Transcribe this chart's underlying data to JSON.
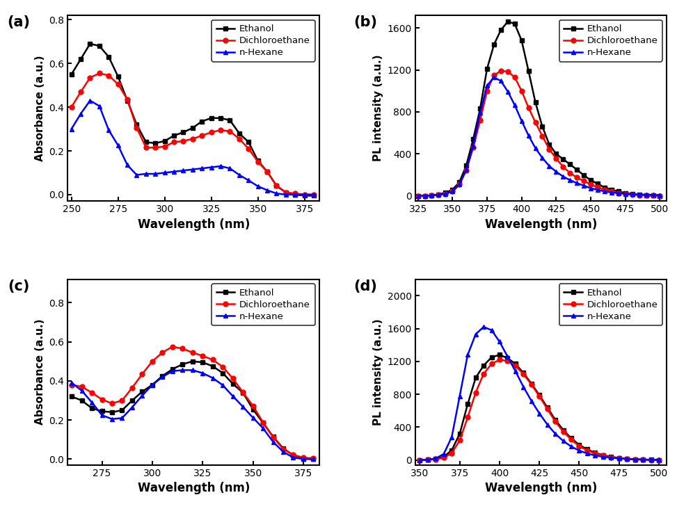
{
  "panel_a": {
    "xlabel": "Wavelength (nm)",
    "ylabel": "Absorbance (a.u.)",
    "xlim": [
      248,
      383
    ],
    "ylim": [
      -0.03,
      0.82
    ],
    "yticks": [
      0.0,
      0.2,
      0.4,
      0.6,
      0.8
    ],
    "xticks": [
      250,
      275,
      300,
      325,
      350,
      375
    ],
    "ethanol_x": [
      250,
      255,
      260,
      265,
      270,
      275,
      280,
      285,
      290,
      295,
      300,
      305,
      310,
      315,
      320,
      325,
      330,
      335,
      340,
      345,
      350,
      355,
      360,
      365,
      370,
      375,
      380
    ],
    "ethanol_y": [
      0.55,
      0.62,
      0.69,
      0.68,
      0.63,
      0.54,
      0.43,
      0.32,
      0.24,
      0.235,
      0.245,
      0.27,
      0.285,
      0.305,
      0.335,
      0.35,
      0.35,
      0.34,
      0.28,
      0.24,
      0.155,
      0.105,
      0.04,
      0.01,
      0.0,
      -0.005,
      -0.005
    ],
    "dcethane_x": [
      250,
      255,
      260,
      265,
      270,
      275,
      280,
      285,
      290,
      295,
      300,
      305,
      310,
      315,
      320,
      325,
      330,
      335,
      340,
      345,
      350,
      355,
      360,
      365,
      370,
      375,
      380
    ],
    "dcethane_y": [
      0.4,
      0.47,
      0.535,
      0.555,
      0.545,
      0.505,
      0.435,
      0.305,
      0.215,
      0.215,
      0.22,
      0.24,
      0.245,
      0.255,
      0.27,
      0.285,
      0.295,
      0.29,
      0.255,
      0.21,
      0.15,
      0.105,
      0.04,
      0.01,
      0.005,
      0.0,
      0.0
    ],
    "hexane_x": [
      250,
      255,
      260,
      265,
      270,
      275,
      280,
      285,
      290,
      295,
      300,
      305,
      310,
      315,
      320,
      325,
      330,
      335,
      340,
      345,
      350,
      355,
      360,
      365,
      370,
      375,
      380
    ],
    "hexane_y": [
      0.3,
      0.37,
      0.43,
      0.405,
      0.295,
      0.225,
      0.135,
      0.09,
      0.095,
      0.095,
      0.1,
      0.105,
      0.11,
      0.115,
      0.12,
      0.125,
      0.13,
      0.12,
      0.09,
      0.065,
      0.038,
      0.02,
      0.005,
      0.0,
      0.0,
      0.0,
      0.0
    ]
  },
  "panel_b": {
    "xlabel": "Wavelength (nm)",
    "ylabel": "PL intensity (a.u.)",
    "xlim": [
      323,
      505
    ],
    "ylim": [
      -50,
      1720
    ],
    "yticks": [
      0,
      400,
      800,
      1200,
      1600
    ],
    "xticks": [
      325,
      350,
      375,
      400,
      425,
      450,
      475,
      500
    ],
    "ethanol_x": [
      325,
      330,
      335,
      340,
      345,
      350,
      355,
      360,
      365,
      370,
      375,
      380,
      385,
      390,
      395,
      400,
      405,
      410,
      415,
      420,
      425,
      430,
      435,
      440,
      445,
      450,
      455,
      460,
      465,
      470,
      475,
      480,
      485,
      490,
      495,
      500
    ],
    "ethanol_y": [
      0,
      0,
      5,
      15,
      30,
      60,
      130,
      290,
      540,
      830,
      1210,
      1440,
      1580,
      1660,
      1640,
      1480,
      1190,
      890,
      660,
      490,
      400,
      350,
      300,
      250,
      195,
      150,
      115,
      80,
      60,
      42,
      28,
      18,
      10,
      5,
      2,
      0
    ],
    "dcethane_x": [
      325,
      330,
      335,
      340,
      345,
      350,
      355,
      360,
      365,
      370,
      375,
      380,
      385,
      390,
      395,
      400,
      405,
      410,
      415,
      420,
      425,
      430,
      435,
      440,
      445,
      450,
      455,
      460,
      465,
      470,
      475,
      480,
      485,
      490,
      495,
      500
    ],
    "dcethane_y": [
      0,
      0,
      5,
      10,
      20,
      45,
      110,
      245,
      460,
      720,
      1000,
      1150,
      1190,
      1185,
      1130,
      1000,
      840,
      700,
      570,
      445,
      355,
      278,
      218,
      175,
      142,
      108,
      82,
      58,
      43,
      28,
      18,
      13,
      7,
      4,
      2,
      0
    ],
    "hexane_x": [
      325,
      330,
      335,
      340,
      345,
      350,
      355,
      360,
      365,
      370,
      375,
      380,
      385,
      390,
      395,
      400,
      405,
      410,
      415,
      420,
      425,
      430,
      435,
      440,
      445,
      450,
      455,
      460,
      465,
      470,
      475,
      480,
      485,
      490,
      495,
      500
    ],
    "hexane_y": [
      0,
      0,
      5,
      10,
      20,
      42,
      108,
      248,
      478,
      790,
      1050,
      1130,
      1095,
      995,
      865,
      715,
      575,
      455,
      362,
      285,
      230,
      185,
      150,
      122,
      98,
      73,
      58,
      43,
      33,
      26,
      20,
      16,
      14,
      12,
      10,
      8
    ]
  },
  "panel_c": {
    "xlabel": "Wavelength (nm)",
    "ylabel": "Absorbance (a.u.)",
    "xlim": [
      258,
      383
    ],
    "ylim": [
      -0.03,
      0.92
    ],
    "yticks": [
      0.0,
      0.2,
      0.4,
      0.6,
      0.8
    ],
    "xticks": [
      275,
      300,
      325,
      350,
      375
    ],
    "ethanol_x": [
      260,
      265,
      270,
      275,
      280,
      285,
      290,
      295,
      300,
      305,
      310,
      315,
      320,
      325,
      330,
      335,
      340,
      345,
      350,
      355,
      360,
      365,
      370,
      375,
      380
    ],
    "ethanol_y": [
      0.32,
      0.3,
      0.26,
      0.245,
      0.24,
      0.25,
      0.3,
      0.345,
      0.38,
      0.425,
      0.46,
      0.485,
      0.5,
      0.495,
      0.475,
      0.44,
      0.385,
      0.34,
      0.255,
      0.185,
      0.115,
      0.055,
      0.02,
      0.003,
      0.0
    ],
    "dcethane_x": [
      260,
      265,
      270,
      275,
      280,
      285,
      290,
      295,
      300,
      305,
      310,
      315,
      320,
      325,
      330,
      335,
      340,
      345,
      350,
      355,
      360,
      365,
      370,
      375,
      380
    ],
    "dcethane_y": [
      0.38,
      0.37,
      0.34,
      0.305,
      0.285,
      0.3,
      0.365,
      0.435,
      0.5,
      0.545,
      0.575,
      0.565,
      0.545,
      0.528,
      0.508,
      0.472,
      0.412,
      0.342,
      0.272,
      0.188,
      0.112,
      0.052,
      0.022,
      0.008,
      0.004
    ],
    "hexane_x": [
      260,
      265,
      270,
      275,
      280,
      285,
      290,
      295,
      300,
      305,
      310,
      315,
      320,
      325,
      330,
      335,
      340,
      345,
      350,
      355,
      360,
      365,
      370,
      375,
      380
    ],
    "hexane_y": [
      0.39,
      0.35,
      0.29,
      0.225,
      0.205,
      0.21,
      0.265,
      0.325,
      0.38,
      0.42,
      0.45,
      0.455,
      0.455,
      0.44,
      0.415,
      0.378,
      0.322,
      0.268,
      0.212,
      0.158,
      0.088,
      0.038,
      0.008,
      0.001,
      0.0
    ]
  },
  "panel_d": {
    "xlabel": "Wavelength (nm)",
    "ylabel": "PL intensity (a.u.)",
    "xlim": [
      347,
      505
    ],
    "ylim": [
      -60,
      2200
    ],
    "yticks": [
      0,
      400,
      800,
      1200,
      1600,
      2000
    ],
    "xticks": [
      350,
      375,
      400,
      425,
      450,
      475,
      500
    ],
    "ethanol_x": [
      350,
      355,
      360,
      365,
      370,
      375,
      380,
      385,
      390,
      395,
      400,
      405,
      410,
      415,
      420,
      425,
      430,
      435,
      440,
      445,
      450,
      455,
      460,
      465,
      470,
      475,
      480,
      485,
      490,
      495,
      500
    ],
    "ethanol_y": [
      0,
      5,
      15,
      40,
      120,
      320,
      680,
      1000,
      1150,
      1250,
      1280,
      1240,
      1170,
      1060,
      930,
      790,
      640,
      490,
      365,
      265,
      185,
      130,
      88,
      60,
      40,
      26,
      16,
      10,
      6,
      3,
      0
    ],
    "dcethane_x": [
      350,
      355,
      360,
      365,
      370,
      375,
      380,
      385,
      390,
      395,
      400,
      405,
      410,
      415,
      420,
      425,
      430,
      435,
      440,
      445,
      450,
      455,
      460,
      465,
      470,
      475,
      480,
      485,
      490,
      495,
      500
    ],
    "dcethane_y": [
      0,
      3,
      10,
      28,
      85,
      240,
      520,
      820,
      1050,
      1170,
      1220,
      1205,
      1145,
      1045,
      920,
      775,
      620,
      468,
      345,
      248,
      170,
      118,
      80,
      54,
      35,
      22,
      13,
      7,
      4,
      2,
      0
    ],
    "hexane_x": [
      350,
      355,
      360,
      365,
      370,
      375,
      380,
      385,
      390,
      395,
      400,
      405,
      410,
      415,
      420,
      425,
      430,
      435,
      440,
      445,
      450,
      455,
      460,
      465,
      470,
      475,
      480,
      485,
      490,
      495,
      500
    ],
    "hexane_y": [
      0,
      5,
      20,
      75,
      280,
      780,
      1280,
      1530,
      1620,
      1580,
      1440,
      1260,
      1080,
      890,
      720,
      568,
      432,
      320,
      232,
      165,
      115,
      80,
      56,
      40,
      28,
      20,
      14,
      10,
      7,
      5,
      3
    ]
  },
  "colors": {
    "ethanol": "#000000",
    "dcethane": "#ff0000",
    "hexane": "#0000ff"
  },
  "marker_ethanol": "s",
  "marker_dcethane": "o",
  "marker_hexane": "^",
  "markersize": 5,
  "linewidth": 1.8
}
